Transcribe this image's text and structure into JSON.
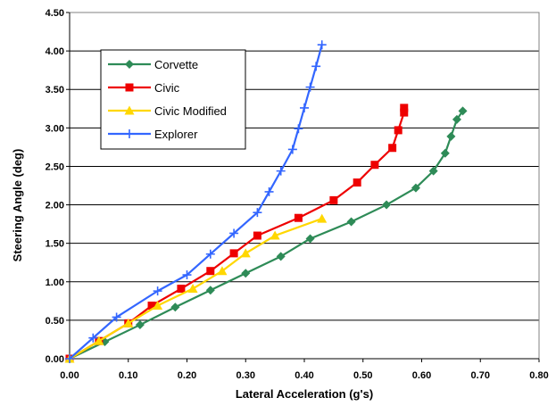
{
  "chart_data": {
    "type": "line",
    "xlabel": "Lateral Acceleration (g's)",
    "ylabel": "Steering Angle (deg)",
    "xlim": [
      0,
      0.8
    ],
    "ylim": [
      0,
      4.5
    ],
    "x_ticks": [
      "0.00",
      "0.10",
      "0.20",
      "0.30",
      "0.40",
      "0.50",
      "0.60",
      "0.70",
      "0.80"
    ],
    "y_ticks": [
      "0.00",
      "0.50",
      "1.00",
      "1.50",
      "2.00",
      "2.50",
      "3.00",
      "3.50",
      "4.00",
      "4.50"
    ],
    "grid": "horizontal",
    "legend_position": "top-left",
    "series": [
      {
        "name": "Corvette",
        "color": "#2e8b57",
        "marker": "diamond",
        "points": [
          [
            0,
            0
          ],
          [
            0.06,
            0.22
          ],
          [
            0.12,
            0.44
          ],
          [
            0.18,
            0.67
          ],
          [
            0.24,
            0.89
          ],
          [
            0.3,
            1.11
          ],
          [
            0.36,
            1.33
          ],
          [
            0.41,
            1.56
          ],
          [
            0.48,
            1.78
          ],
          [
            0.54,
            2.0
          ],
          [
            0.59,
            2.22
          ],
          [
            0.62,
            2.44
          ],
          [
            0.64,
            2.67
          ],
          [
            0.65,
            2.89
          ],
          [
            0.66,
            3.11
          ],
          [
            0.67,
            3.22
          ]
        ]
      },
      {
        "name": "Civic",
        "color": "#ee0000",
        "marker": "square",
        "points": [
          [
            0,
            0
          ],
          [
            0.05,
            0.23
          ],
          [
            0.1,
            0.46
          ],
          [
            0.14,
            0.69
          ],
          [
            0.19,
            0.91
          ],
          [
            0.24,
            1.14
          ],
          [
            0.28,
            1.37
          ],
          [
            0.32,
            1.6
          ],
          [
            0.39,
            1.83
          ],
          [
            0.45,
            2.06
          ],
          [
            0.49,
            2.29
          ],
          [
            0.52,
            2.52
          ],
          [
            0.55,
            2.74
          ],
          [
            0.56,
            2.97
          ],
          [
            0.57,
            3.2
          ],
          [
            0.57,
            3.26
          ]
        ]
      },
      {
        "name": "Civic Modified",
        "color": "#ffd700",
        "marker": "triangle",
        "points": [
          [
            0,
            0
          ],
          [
            0.05,
            0.23
          ],
          [
            0.1,
            0.46
          ],
          [
            0.15,
            0.69
          ],
          [
            0.21,
            0.91
          ],
          [
            0.26,
            1.14
          ],
          [
            0.3,
            1.37
          ],
          [
            0.35,
            1.6
          ],
          [
            0.43,
            1.82
          ]
        ]
      },
      {
        "name": "Explorer",
        "color": "#3366ff",
        "marker": "plus",
        "points": [
          [
            0,
            0
          ],
          [
            0.04,
            0.27
          ],
          [
            0.08,
            0.54
          ],
          [
            0.15,
            0.88
          ],
          [
            0.2,
            1.09
          ],
          [
            0.24,
            1.36
          ],
          [
            0.28,
            1.63
          ],
          [
            0.32,
            1.9
          ],
          [
            0.34,
            2.17
          ],
          [
            0.36,
            2.44
          ],
          [
            0.38,
            2.72
          ],
          [
            0.39,
            2.99
          ],
          [
            0.4,
            3.26
          ],
          [
            0.41,
            3.53
          ],
          [
            0.42,
            3.8
          ],
          [
            0.43,
            4.08
          ]
        ]
      }
    ]
  }
}
